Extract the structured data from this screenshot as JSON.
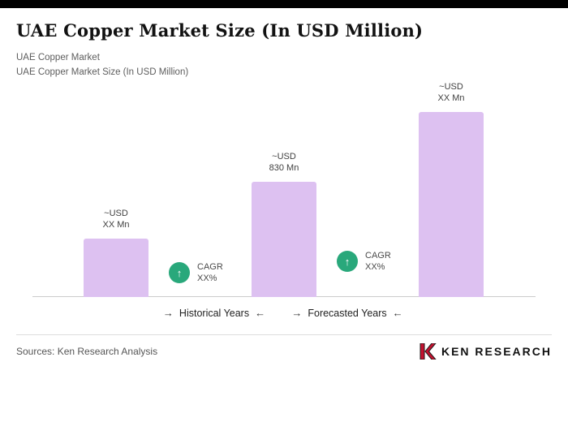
{
  "header": {
    "title": "UAE Copper Market Size (In USD Million)",
    "subtitle_line1": "UAE Copper Market",
    "subtitle_line2": "UAE Copper Market Size (In USD Million)"
  },
  "chart_data": {
    "type": "bar",
    "title": "UAE Copper Market Size (In USD Million)",
    "categories": [
      "",
      "",
      ""
    ],
    "values_estimated": [
      420,
      830,
      1330
    ],
    "bar_value_labels": [
      [
        "~USD",
        "XX Mn"
      ],
      [
        "~USD",
        "830 Mn"
      ],
      [
        "~USD",
        "XX Mn"
      ]
    ],
    "ylim": [
      0,
      1400
    ],
    "bar_color": "#ddc1f1",
    "grid": false,
    "legend_position": "none",
    "cagr_badges": [
      {
        "arrow": "↑",
        "line1": "CAGR",
        "line2": "XX%"
      },
      {
        "arrow": "↑",
        "line1": "CAGR",
        "line2": "XX%"
      }
    ],
    "badge_color": "#29a87b",
    "axis_groups": [
      {
        "arrow_left": "→",
        "label": "Historical Years",
        "arrow_right": "←"
      },
      {
        "arrow_left": "→",
        "label": "Forecasted Years",
        "arrow_right": "←"
      }
    ]
  },
  "footer": {
    "sources": "Sources: Ken Research Analysis",
    "logo_letter": "K",
    "logo_text": "KEN RESEARCH"
  }
}
